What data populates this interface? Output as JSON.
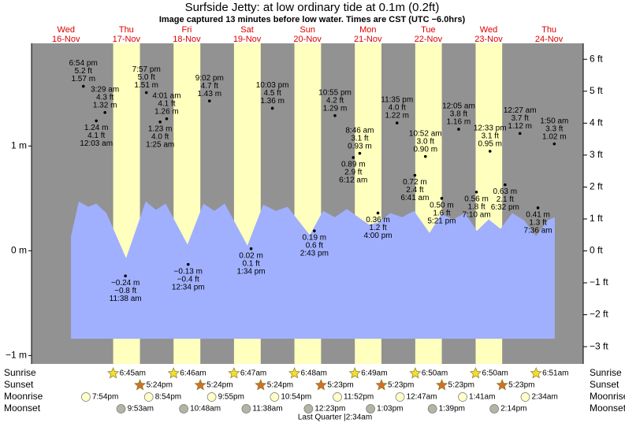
{
  "chart_data": {
    "type": "tide",
    "title": "Surfside Jetty: at low  ordinary tide at 0.1m (0.2ft)",
    "subtitle": "Image captured 13 minutes before low water. Times are CST (UTC −6.0hrs)",
    "days": [
      {
        "weekday": "Wed",
        "date": "16-Nov"
      },
      {
        "weekday": "Thu",
        "date": "17-Nov"
      },
      {
        "weekday": "Fri",
        "date": "18-Nov"
      },
      {
        "weekday": "Sat",
        "date": "19-Nov"
      },
      {
        "weekday": "Sun",
        "date": "20-Nov"
      },
      {
        "weekday": "Mon",
        "date": "21-Nov"
      },
      {
        "weekday": "Tue",
        "date": "22-Nov"
      },
      {
        "weekday": "Wed",
        "date": "23-Nov"
      },
      {
        "weekday": "Thu",
        "date": "24-Nov"
      }
    ],
    "xlim": [
      -1.7,
      217.6
    ],
    "ylim": [
      -1.08,
      1.98
    ],
    "yticks": [
      {
        "value": 1,
        "label": "1 m"
      },
      {
        "value": 0,
        "label": "0 m"
      },
      {
        "value": -1,
        "label": "−1 m"
      }
    ],
    "y2lim": [
      -3.54,
      6.5
    ],
    "y2ticks": [
      {
        "value": 6,
        "label": "6 ft"
      },
      {
        "value": 5,
        "label": "5 ft"
      },
      {
        "value": 4,
        "label": "4 ft"
      },
      {
        "value": 3,
        "label": "3 ft"
      },
      {
        "value": 2,
        "label": "2 ft"
      },
      {
        "value": 1,
        "label": "1 ft"
      },
      {
        "value": 0,
        "label": "0 ft"
      },
      {
        "value": -1,
        "label": "−1 ft"
      },
      {
        "value": -2,
        "label": "−2 ft"
      },
      {
        "value": -3,
        "label": "−3 ft"
      }
    ],
    "tide": {
      "color": "#a0b0ff",
      "x": [
        14.0,
        17.1,
        20.9,
        24.0,
        28.1,
        35.9,
        43.7,
        47.8,
        51.6,
        60.3,
        66.6,
        71.0,
        75.1,
        84.1,
        90.4,
        95.4,
        100.1,
        108.9,
        114.2,
        118.9,
        123.6,
        132.4,
        136.2,
        140.9,
        145.6,
        150.3,
        156.5,
        161.2,
        165.9,
        170.6,
        175.3,
        180.0,
        184.7,
        189.4,
        194.1,
        198.8,
        203.5,
        206.3
      ],
      "values": [
        0.14,
        0.47,
        0.42,
        0.45,
        0.36,
        -0.07,
        0.47,
        0.39,
        0.45,
        0.06,
        0.45,
        0.38,
        0.45,
        0.05,
        0.44,
        0.38,
        0.42,
        0.15,
        0.38,
        0.32,
        0.4,
        0.25,
        0.27,
        0.36,
        0.32,
        0.38,
        0.17,
        0.35,
        0.3,
        0.36,
        0.19,
        0.3,
        0.21,
        0.36,
        0.29,
        0.14,
        0.29,
        0.32
      ]
    },
    "events": [
      {
        "time": "6:54 pm",
        "hours": 18.9,
        "value": 1.57,
        "value_label": "1.57 m",
        "ft_label": "5.2 ft",
        "pos": "above"
      },
      {
        "time": "3:29 am",
        "hours": 27.48,
        "value": 1.32,
        "value_label": "1.32 m",
        "ft_label": "4.3 ft",
        "pos": "above"
      },
      {
        "time": "12:03 am",
        "hours": 24.05,
        "value": 1.24,
        "value_label": "1.24 m",
        "ft_label": "4.1 ft",
        "pos": "below"
      },
      {
        "time": "11:38 am",
        "hours": 35.63,
        "value": -0.24,
        "value_label": "−0.24 m",
        "ft_label": "−0.8 ft",
        "pos": "below"
      },
      {
        "time": "7:57 pm",
        "hours": 43.95,
        "value": 1.51,
        "value_label": "1.51 m",
        "ft_label": "5.0 ft",
        "pos": "above"
      },
      {
        "time": "4:01 am",
        "hours": 52.02,
        "value": 1.26,
        "value_label": "1.26 m",
        "ft_label": "4.1 ft",
        "pos": "above"
      },
      {
        "time": "1:25 am",
        "hours": 49.42,
        "value": 1.23,
        "value_label": "1.23 m",
        "ft_label": "4.0 ft",
        "pos": "below"
      },
      {
        "time": "12:34 pm",
        "hours": 60.57,
        "value": -0.13,
        "value_label": "−0.13 m",
        "ft_label": "−0.4 ft",
        "pos": "below"
      },
      {
        "time": "9:02 pm",
        "hours": 69.03,
        "value": 1.43,
        "value_label": "1.43 m",
        "ft_label": "4.7 ft",
        "pos": "above"
      },
      {
        "time": "1:34 pm",
        "hours": 85.57,
        "value": 0.02,
        "value_label": "0.02 m",
        "ft_label": "0.1 ft",
        "pos": "below"
      },
      {
        "time": "10:03 pm",
        "hours": 94.05,
        "value": 1.36,
        "value_label": "1.36 m",
        "ft_label": "4.5 ft",
        "pos": "above"
      },
      {
        "time": "2:43 pm",
        "hours": 110.72,
        "value": 0.19,
        "value_label": "0.19 m",
        "ft_label": "0.6 ft",
        "pos": "below"
      },
      {
        "time": "10:55 pm",
        "hours": 118.92,
        "value": 1.29,
        "value_label": "1.29 m",
        "ft_label": "4.2 ft",
        "pos": "above"
      },
      {
        "time": "8:46 am",
        "hours": 128.77,
        "value": 0.93,
        "value_label": "0.93 m",
        "ft_label": "3.1 ft",
        "pos": "above"
      },
      {
        "time": "6:12 am",
        "hours": 126.2,
        "value": 0.89,
        "value_label": "0.89 m",
        "ft_label": "2.9 ft",
        "pos": "below"
      },
      {
        "time": "4:00 pm",
        "hours": 136.0,
        "value": 0.36,
        "value_label": "0.36 m",
        "ft_label": "1.2 ft",
        "pos": "below"
      },
      {
        "time": "11:35 pm",
        "hours": 143.58,
        "value": 1.22,
        "value_label": "1.22 m",
        "ft_label": "4.0 ft",
        "pos": "above"
      },
      {
        "time": "10:52 am",
        "hours": 154.87,
        "value": 0.9,
        "value_label": "0.90 m",
        "ft_label": "3.0 ft",
        "pos": "above"
      },
      {
        "time": "6:41 am",
        "hours": 150.68,
        "value": 0.72,
        "value_label": "0.72 m",
        "ft_label": "2.4 ft",
        "pos": "below"
      },
      {
        "time": "5:21 pm",
        "hours": 161.35,
        "value": 0.5,
        "value_label": "0.50 m",
        "ft_label": "1.6 ft",
        "pos": "below"
      },
      {
        "time": "12:05 am",
        "hours": 168.08,
        "value": 1.16,
        "value_label": "1.16 m",
        "ft_label": "3.8 ft",
        "pos": "above"
      },
      {
        "time": "12:33 pm",
        "hours": 180.55,
        "value": 0.95,
        "value_label": "0.95 m",
        "ft_label": "3.1 ft",
        "pos": "above"
      },
      {
        "time": "7:10 am",
        "hours": 175.17,
        "value": 0.56,
        "value_label": "0.56 m",
        "ft_label": "1.8 ft",
        "pos": "below"
      },
      {
        "time": "6:32 pm",
        "hours": 186.53,
        "value": 0.63,
        "value_label": "0.63 m",
        "ft_label": "2.1 ft",
        "pos": "below"
      },
      {
        "time": "12:27 am",
        "hours": 192.45,
        "value": 1.12,
        "value_label": "1.12 m",
        "ft_label": "3.7 ft",
        "pos": "above"
      },
      {
        "time": "1:50 am",
        "hours": 206.1,
        "value": 1.02,
        "value_label": "1.02 m",
        "ft_label": "3.3 ft",
        "pos": "above"
      },
      {
        "time": "7:36 am",
        "hours": 199.6,
        "value": 0.41,
        "value_label": "0.41 m",
        "ft_label": "1.3 ft",
        "pos": "below"
      }
    ],
    "rows": [
      {
        "label": "Sunrise",
        "icon": "star",
        "color": "#f2e030",
        "times": [
          null,
          "6:45am",
          "6:46am",
          "6:47am",
          "6:48am",
          "6:49am",
          "6:50am",
          "6:50am",
          "6:51am"
        ]
      },
      {
        "label": "Sunset",
        "icon": "star",
        "color": "#d0702a",
        "times": [
          null,
          "5:24pm",
          "5:24pm",
          "5:24pm",
          "5:23pm",
          "5:23pm",
          "5:23pm",
          "5:23pm",
          null
        ]
      },
      {
        "label": "Moonrise",
        "icon": "circle",
        "color": "#ffffc8",
        "times": [
          "7:54pm",
          "8:54pm",
          "9:55pm",
          "10:54pm",
          "11:52pm",
          null,
          "12:47am",
          "1:41am",
          "2:34am"
        ]
      },
      {
        "label": "Moonset",
        "icon": "circle",
        "color": "#b4b4a4",
        "times": [
          null,
          "9:53am",
          "10:48am",
          "11:38am",
          "12:23pm",
          "1:03pm",
          "1:39pm",
          "2:14pm",
          null
        ]
      }
    ],
    "moon_phase": "Last Quarter |2:34am",
    "plot_color": "#929292",
    "daylight_color": "#ffffbe",
    "day_color": "#dd0000"
  }
}
